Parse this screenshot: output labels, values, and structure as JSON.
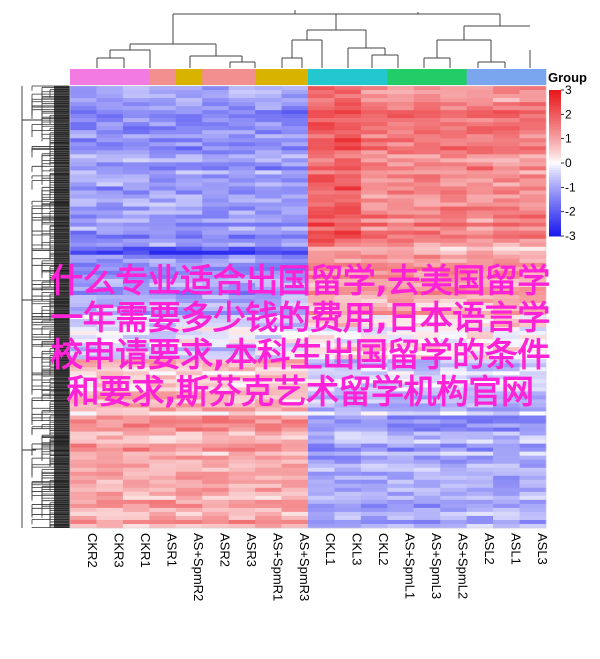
{
  "chart_data": {
    "type": "heatmap",
    "columns": [
      "CKR2",
      "CKR3",
      "CKR1",
      "ASR1",
      "AS+SpmR2",
      "ASR2",
      "ASR3",
      "AS+SpmR1",
      "AS+SpmR3",
      "CKL1",
      "CKL3",
      "CKL2",
      "AS+SpmL1",
      "AS+SpmL3",
      "AS+SpmL2",
      "ASL2",
      "ASL1",
      "ASL3"
    ],
    "column_groups": [
      "CKR",
      "CKR",
      "CKR",
      "ASR",
      "AS+SpmR",
      "ASR",
      "ASR",
      "AS+SpmR",
      "AS+SpmR",
      "CKL",
      "CKL",
      "CKL",
      "AS+SpmL",
      "AS+SpmL",
      "AS+SpmL",
      "ASL",
      "ASL",
      "ASL"
    ],
    "group_colors": {
      "CKR": "#f27ae0",
      "ASR": "#f28f8f",
      "AS+SpmR": "#d8b400",
      "CKL": "#23c8cf",
      "AS+SpmL": "#22cc66",
      "ASL": "#7aa6f0"
    },
    "legend": {
      "title": "Group",
      "ticks": [
        3,
        2,
        1,
        0,
        -1,
        -2,
        -3
      ],
      "colors": {
        "high": "#e8151a",
        "mid": "#ffffff",
        "low": "#1a1aee"
      }
    },
    "value_range": [
      -3,
      3
    ],
    "rows": "many (unlabeled)",
    "col_block_pattern": [
      {
        "top": 0.0,
        "bottom": 0.36,
        "left_value": -1.2,
        "right_value": 1.4
      },
      {
        "top": 0.36,
        "bottom": 0.38,
        "left_value": -2.0,
        "right_value": 0.6
      },
      {
        "top": 0.38,
        "bottom": 0.52,
        "left_value": -1.0,
        "right_value": 0.9
      },
      {
        "top": 0.52,
        "bottom": 0.62,
        "left_value": -0.3,
        "right_value": 0.2
      },
      {
        "top": 0.62,
        "bottom": 0.75,
        "left_value": 0.6,
        "right_value": -0.6
      },
      {
        "top": 0.75,
        "bottom": 1.0,
        "left_value": 1.0,
        "right_value": -1.0
      }
    ]
  },
  "overlay_text": [
    "什么专业适合出国留学,去美国留学",
    "一年需要多少钱的费用,日本语言学",
    "校申请要求,本科生出国留学的条件",
    "和要求,斯芬克艺术留学机构官网"
  ]
}
